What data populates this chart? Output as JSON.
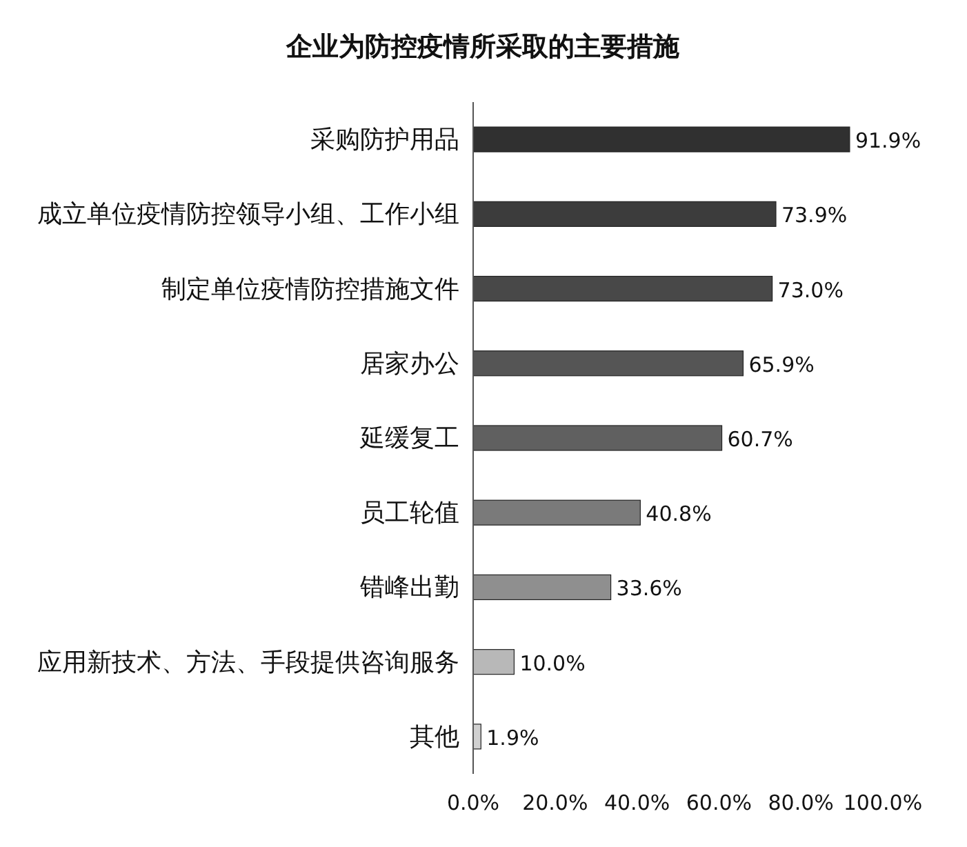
{
  "chart_data": {
    "type": "bar",
    "orientation": "horizontal",
    "title": "企业为防控疫情所采取的主要措施",
    "categories": [
      "采购防护用品",
      "成立单位疫情防控领导小组、工作小组",
      "制定单位疫情防控措施文件",
      "居家办公",
      "延缓复工",
      "员工轮值",
      "错峰出勤",
      "应用新技术、方法、手段提供咨询服务",
      "其他"
    ],
    "values": [
      91.9,
      73.9,
      73.0,
      65.9,
      60.7,
      40.8,
      33.6,
      10.0,
      1.9
    ],
    "colors": [
      "#303030",
      "#3c3c3c",
      "#484848",
      "#555555",
      "#606060",
      "#7a7a7a",
      "#8f8f8f",
      "#b8b8b8",
      "#d0d0d0"
    ],
    "value_labels": [
      "91.9%",
      "73.9%",
      "73.0%",
      "65.9%",
      "60.7%",
      "40.8%",
      "33.6%",
      "10.0%",
      "1.9%"
    ],
    "xlim": [
      0,
      100
    ],
    "xticks": [
      {
        "value": 0,
        "label": "0.0%"
      },
      {
        "value": 20,
        "label": "20.0%"
      },
      {
        "value": 40,
        "label": "40.0%"
      },
      {
        "value": 60,
        "label": "60.0%"
      },
      {
        "value": 80,
        "label": "80.0%"
      },
      {
        "value": 100,
        "label": "100.0%"
      }
    ],
    "grid": false
  }
}
